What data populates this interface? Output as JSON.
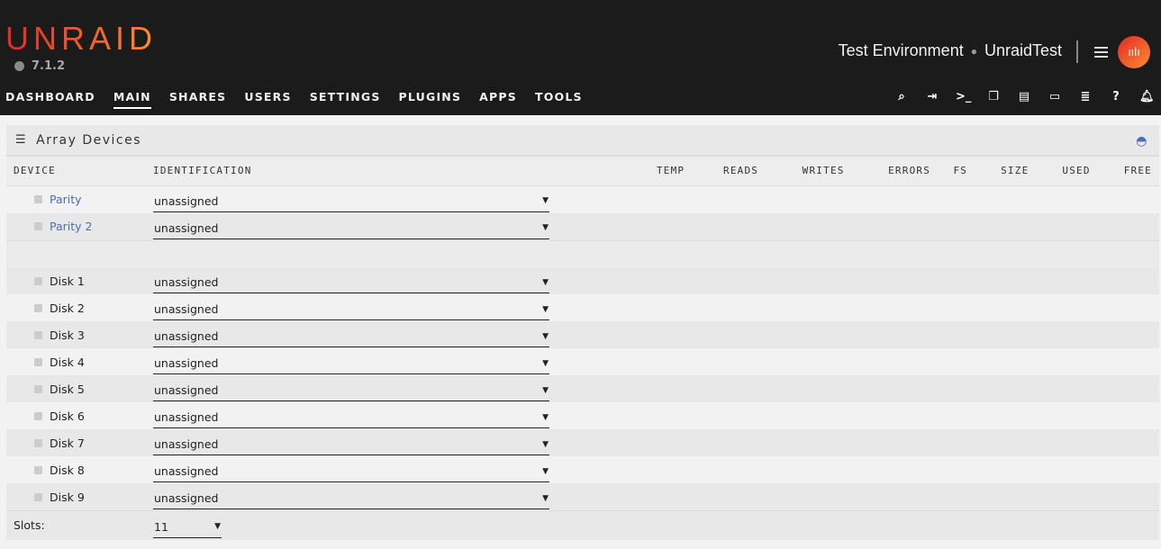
{
  "header": {
    "logo": "UNRAID",
    "version": "7.1.2",
    "server_desc": "Test Environment",
    "server_name": "UnraidTest",
    "nav": [
      "DASHBOARD",
      "MAIN",
      "SHARES",
      "USERS",
      "SETTINGS",
      "PLUGINS",
      "APPS",
      "TOOLS"
    ],
    "active_nav": "MAIN",
    "icons": [
      "search-icon",
      "logout-icon",
      "terminal-icon",
      "copy-icon",
      "feedback-icon",
      "monitor-icon",
      "log-icon",
      "help-icon",
      "bell-icon"
    ]
  },
  "panel": {
    "title": "Array Devices",
    "columns": [
      "DEVICE",
      "IDENTIFICATION",
      "TEMP",
      "READS",
      "WRITES",
      "ERRORS",
      "FS",
      "SIZE",
      "USED",
      "FREE"
    ],
    "parity": [
      {
        "name": "Parity",
        "value": "unassigned"
      },
      {
        "name": "Parity 2",
        "value": "unassigned"
      }
    ],
    "disks": [
      {
        "name": "Disk 1",
        "value": "unassigned"
      },
      {
        "name": "Disk 2",
        "value": "unassigned"
      },
      {
        "name": "Disk 3",
        "value": "unassigned"
      },
      {
        "name": "Disk 4",
        "value": "unassigned"
      },
      {
        "name": "Disk 5",
        "value": "unassigned"
      },
      {
        "name": "Disk 6",
        "value": "unassigned"
      },
      {
        "name": "Disk 7",
        "value": "unassigned"
      },
      {
        "name": "Disk 8",
        "value": "unassigned"
      },
      {
        "name": "Disk 9",
        "value": "unassigned"
      }
    ],
    "slots_label": "Slots:",
    "slots_value": "11"
  },
  "colors": {
    "accent": "#486dba",
    "brand_start": "#e22828",
    "brand_end": "#ff8c2f",
    "header_bg": "#1c1b1b"
  }
}
